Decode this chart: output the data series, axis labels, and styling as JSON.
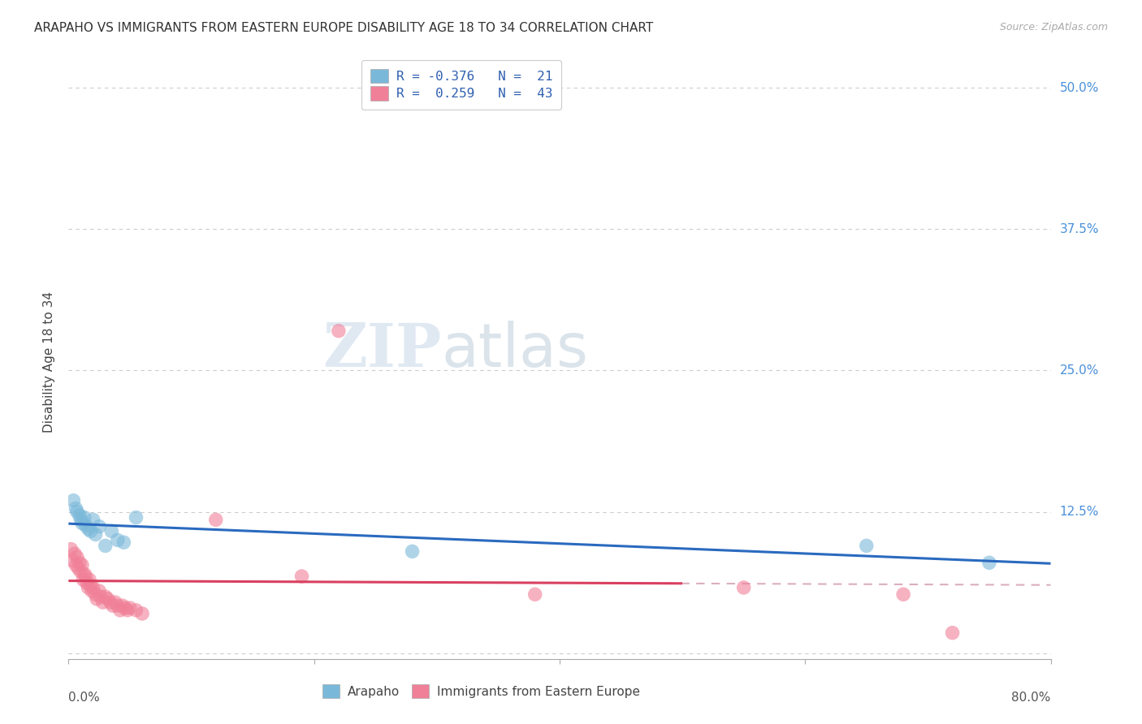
{
  "title": "ARAPAHO VS IMMIGRANTS FROM EASTERN EUROPE DISABILITY AGE 18 TO 34 CORRELATION CHART",
  "source": "Source: ZipAtlas.com",
  "ylabel": "Disability Age 18 to 34",
  "y_ticks": [
    0.0,
    0.125,
    0.25,
    0.375,
    0.5
  ],
  "y_tick_labels": [
    "",
    "12.5%",
    "25.0%",
    "37.5%",
    "50.0%"
  ],
  "x_range": [
    0.0,
    0.8
  ],
  "y_range": [
    -0.005,
    0.52
  ],
  "x_tick_positions": [
    0.0,
    0.2,
    0.4,
    0.6,
    0.8
  ],
  "watermark_zip": "ZIP",
  "watermark_atlas": "atlas",
  "arapaho_points": [
    [
      0.004,
      0.135
    ],
    [
      0.006,
      0.128
    ],
    [
      0.007,
      0.125
    ],
    [
      0.009,
      0.122
    ],
    [
      0.01,
      0.118
    ],
    [
      0.011,
      0.115
    ],
    [
      0.013,
      0.12
    ],
    [
      0.014,
      0.113
    ],
    [
      0.016,
      0.11
    ],
    [
      0.018,
      0.108
    ],
    [
      0.02,
      0.118
    ],
    [
      0.022,
      0.105
    ],
    [
      0.025,
      0.112
    ],
    [
      0.03,
      0.095
    ],
    [
      0.035,
      0.108
    ],
    [
      0.04,
      0.1
    ],
    [
      0.045,
      0.098
    ],
    [
      0.055,
      0.12
    ],
    [
      0.28,
      0.09
    ],
    [
      0.65,
      0.095
    ],
    [
      0.75,
      0.08
    ]
  ],
  "eastern_europe_points": [
    [
      0.002,
      0.092
    ],
    [
      0.003,
      0.082
    ],
    [
      0.005,
      0.088
    ],
    [
      0.006,
      0.078
    ],
    [
      0.007,
      0.085
    ],
    [
      0.008,
      0.075
    ],
    [
      0.009,
      0.08
    ],
    [
      0.01,
      0.072
    ],
    [
      0.011,
      0.078
    ],
    [
      0.012,
      0.065
    ],
    [
      0.013,
      0.07
    ],
    [
      0.014,
      0.068
    ],
    [
      0.015,
      0.062
    ],
    [
      0.016,
      0.058
    ],
    [
      0.017,
      0.065
    ],
    [
      0.018,
      0.06
    ],
    [
      0.019,
      0.055
    ],
    [
      0.02,
      0.058
    ],
    [
      0.022,
      0.052
    ],
    [
      0.023,
      0.048
    ],
    [
      0.025,
      0.055
    ],
    [
      0.026,
      0.05
    ],
    [
      0.028,
      0.045
    ],
    [
      0.03,
      0.05
    ],
    [
      0.032,
      0.048
    ],
    [
      0.034,
      0.045
    ],
    [
      0.036,
      0.042
    ],
    [
      0.038,
      0.045
    ],
    [
      0.04,
      0.042
    ],
    [
      0.042,
      0.038
    ],
    [
      0.044,
      0.042
    ],
    [
      0.046,
      0.04
    ],
    [
      0.048,
      0.038
    ],
    [
      0.05,
      0.04
    ],
    [
      0.055,
      0.038
    ],
    [
      0.06,
      0.035
    ],
    [
      0.12,
      0.118
    ],
    [
      0.19,
      0.068
    ],
    [
      0.22,
      0.285
    ],
    [
      0.38,
      0.052
    ],
    [
      0.55,
      0.058
    ],
    [
      0.68,
      0.052
    ],
    [
      0.72,
      0.018
    ]
  ],
  "arapaho_color": "#7ab8d9",
  "eastern_europe_color": "#f08098",
  "arapaho_trendline_color": "#2a6abf",
  "eastern_europe_trendline_color": "#d94060",
  "eastern_europe_dashed_color": "#d4a0b4",
  "background_color": "#ffffff",
  "grid_color": "#cccccc",
  "legend_text_blue": "R = -0.376   N =  21",
  "legend_text_pink": "R =  0.259   N =  43",
  "series_label_blue": "Arapaho",
  "series_label_pink": "Immigrants from Eastern Europe"
}
